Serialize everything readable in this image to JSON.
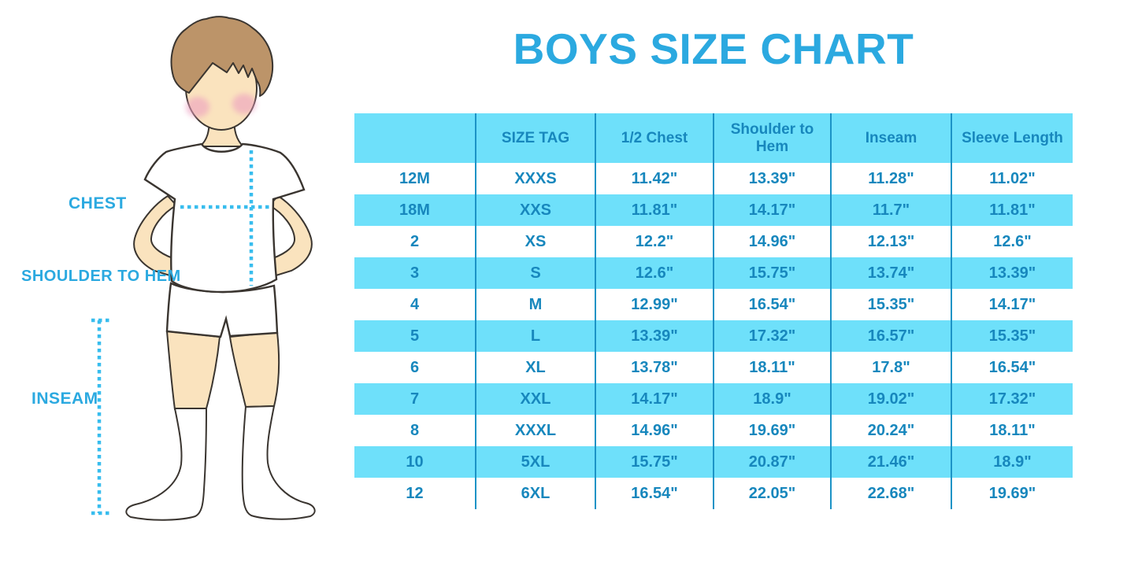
{
  "title": "BOYS SIZE CHART",
  "figure": {
    "labels": {
      "chest": "CHEST",
      "shoulder_to_hem": "SHOULDER TO HEM",
      "inseam": "INSEAM"
    }
  },
  "colors": {
    "accent_blue": "#2BA9E0",
    "table_fill_cyan": "#6EE0FA",
    "table_divider_blue": "#1C93C6",
    "table_text_blue": "#1787BD",
    "dotted_line_cyan": "#38BDEE"
  },
  "chart_data": {
    "type": "table",
    "title": "BOYS SIZE CHART",
    "columns": [
      "",
      "SIZE TAG",
      "1/2 Chest",
      "Shoulder to Hem",
      "Inseam",
      "Sleeve Length"
    ],
    "rows": [
      [
        "12M",
        "XXXS",
        "11.42\"",
        "13.39\"",
        "11.28\"",
        "11.02\""
      ],
      [
        "18M",
        "XXS",
        "11.81\"",
        "14.17\"",
        "11.7\"",
        "11.81\""
      ],
      [
        "2",
        "XS",
        "12.2\"",
        "14.96\"",
        "12.13\"",
        "12.6\""
      ],
      [
        "3",
        "S",
        "12.6\"",
        "15.75\"",
        "13.74\"",
        "13.39\""
      ],
      [
        "4",
        "M",
        "12.99\"",
        "16.54\"",
        "15.35\"",
        "14.17\""
      ],
      [
        "5",
        "L",
        "13.39\"",
        "17.32\"",
        "16.57\"",
        "15.35\""
      ],
      [
        "6",
        "XL",
        "13.78\"",
        "18.11\"",
        "17.8\"",
        "16.54\""
      ],
      [
        "7",
        "XXL",
        "14.17\"",
        "18.9\"",
        "19.02\"",
        "17.32\""
      ],
      [
        "8",
        "XXXL",
        "14.96\"",
        "19.69\"",
        "20.24\"",
        "18.11\""
      ],
      [
        "10",
        "5XL",
        "15.75\"",
        "20.87\"",
        "21.46\"",
        "18.9\""
      ],
      [
        "12",
        "6XL",
        "16.54\"",
        "22.05\"",
        "22.68\"",
        "19.69\""
      ]
    ]
  }
}
